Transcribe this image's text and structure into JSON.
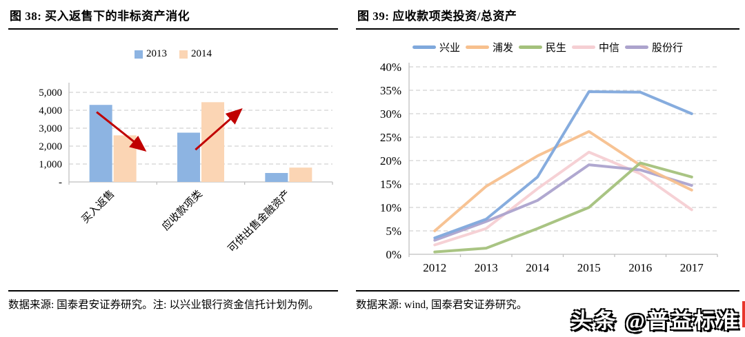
{
  "watermark": {
    "text": "头条 @普益标准"
  },
  "colors": {
    "bar_2013": "#8DB4E2",
    "bar_2014": "#FBD5B4",
    "arrow_red": "#C00000",
    "gridline": "#D2D2D2",
    "axis": "#BFBFBF"
  },
  "chart_data": [
    {
      "id": "fig38",
      "type": "bar",
      "title": "图 38:  买入返售下的非标资产消化",
      "source": "数据来源: 国泰君安证券研究。注: 以兴业银行资金信托计划为例。",
      "categories": [
        "买入返售",
        "应收款项类",
        "可供出售金融资产"
      ],
      "series": [
        {
          "name": "2013",
          "color": "#8DB4E2",
          "values": [
            4300,
            2750,
            500
          ]
        },
        {
          "name": "2014",
          "color": "#FBD5B4",
          "values": [
            2600,
            4450,
            800
          ]
        }
      ],
      "ylim": [
        0,
        5000
      ],
      "yticks": [
        {
          "v": 0,
          "label": "-"
        },
        {
          "v": 1000,
          "label": "1,000"
        },
        {
          "v": 2000,
          "label": "2,000"
        },
        {
          "v": 3000,
          "label": "3,000"
        },
        {
          "v": 4000,
          "label": "4,000"
        },
        {
          "v": 5000,
          "label": "5,000"
        }
      ],
      "grid": "horizontal-dashed",
      "legend_position": "top",
      "annotations": [
        {
          "kind": "arrow",
          "color": "#C00000",
          "x1": 0.105,
          "y1": 3900,
          "x2": 0.285,
          "y2": 1800
        },
        {
          "kind": "arrow",
          "color": "#C00000",
          "x1": 0.48,
          "y1": 1800,
          "x2": 0.65,
          "y2": 4000
        }
      ]
    },
    {
      "id": "fig39",
      "type": "line",
      "title": "图 39:  应收款项类投资/总资产",
      "source": "数据来源: wind, 国泰君安证券研究。",
      "x": [
        "2012",
        "2013",
        "2014",
        "2015",
        "2016",
        "2017"
      ],
      "series": [
        {
          "name": "兴业",
          "color": "#7FA8DC",
          "values": [
            3.5,
            7.5,
            16.5,
            34.7,
            34.6,
            30.0
          ]
        },
        {
          "name": "浦发",
          "color": "#F7C08E",
          "values": [
            5.0,
            14.5,
            21.0,
            26.2,
            19.0,
            13.7
          ]
        },
        {
          "name": "民生",
          "color": "#A4C17C",
          "values": [
            0.5,
            1.3,
            5.5,
            10.0,
            19.5,
            16.5
          ]
        },
        {
          "name": "中信",
          "color": "#F5CFD3",
          "values": [
            2.0,
            5.5,
            14.0,
            21.8,
            17.2,
            9.5
          ]
        },
        {
          "name": "股份行",
          "color": "#ACA3CD",
          "values": [
            3.0,
            7.0,
            11.5,
            19.1,
            18.0,
            14.7
          ]
        }
      ],
      "ylim": [
        0,
        40
      ],
      "ytick_step": 5,
      "yticks": [
        "0%",
        "5%",
        "10%",
        "15%",
        "20%",
        "25%",
        "30%",
        "35%",
        "40%"
      ],
      "grid": "horizontal-dashed",
      "legend_position": "top"
    }
  ]
}
